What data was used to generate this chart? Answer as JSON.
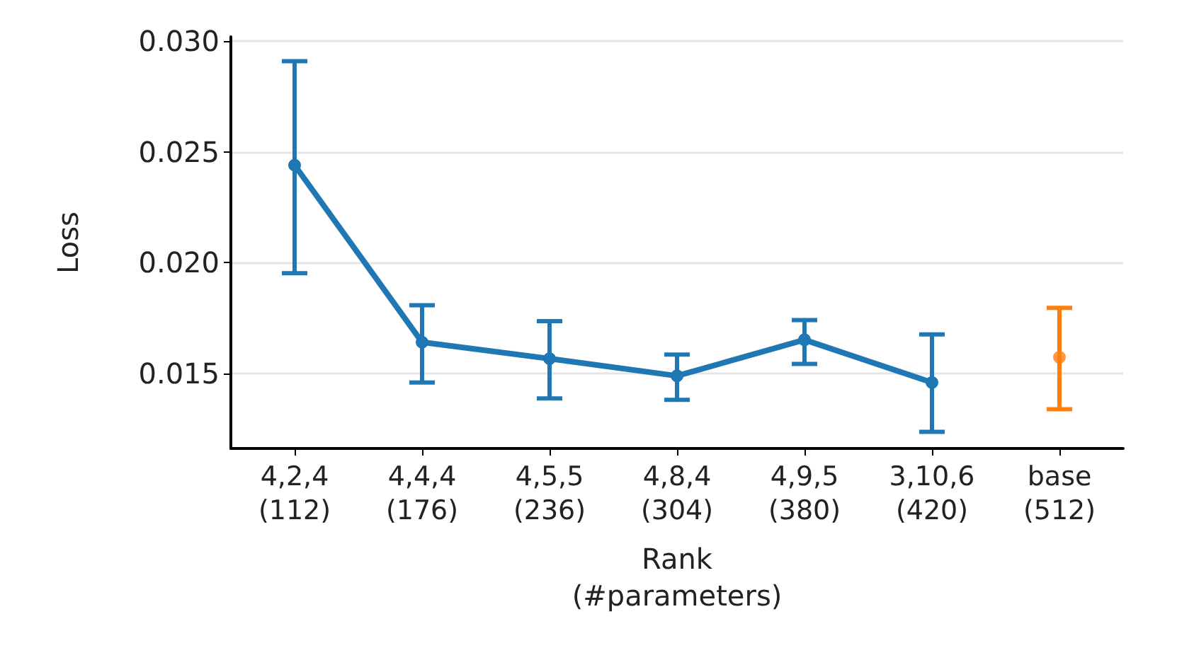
{
  "chart_data": {
    "type": "line",
    "xlabel": "Rank\n(#parameters)",
    "ylabel": "Loss",
    "categories": [
      "4,2,4\n(112)",
      "4,4,4\n(176)",
      "4,5,5\n(236)",
      "4,8,4\n(304)",
      "4,9,5\n(380)",
      "3,10,6\n(420)",
      "base\n(512)"
    ],
    "series": [
      {
        "color": "#1f77b4",
        "values": [
          0.0244,
          0.0164,
          0.01566,
          0.01488,
          0.01651,
          0.01458,
          null
        ],
        "errors": [
          [
            0.01952,
            0.0291
          ],
          [
            0.01458,
            0.01807
          ],
          [
            0.01386,
            0.01735
          ],
          [
            0.0138,
            0.01584
          ],
          [
            0.01542,
            0.0174
          ],
          [
            0.01235,
            0.01675
          ],
          null
        ]
      },
      {
        "type": "scatter",
        "color": "#ff7f0e",
        "values": [
          null,
          null,
          null,
          null,
          null,
          null,
          0.01572
        ],
        "errors": [
          null,
          null,
          null,
          null,
          null,
          null,
          [
            0.01337,
            0.01795
          ]
        ]
      }
    ],
    "ylim": [
      0.0116,
      0.0302
    ],
    "yticks": [
      {
        "value": 0.015,
        "label": "0.015"
      },
      {
        "value": 0.02,
        "label": "0.020"
      },
      {
        "value": 0.025,
        "label": "0.025"
      },
      {
        "value": 0.03,
        "label": "0.030"
      }
    ],
    "grid": "y",
    "marker": "circle",
    "line_style": "solid"
  }
}
